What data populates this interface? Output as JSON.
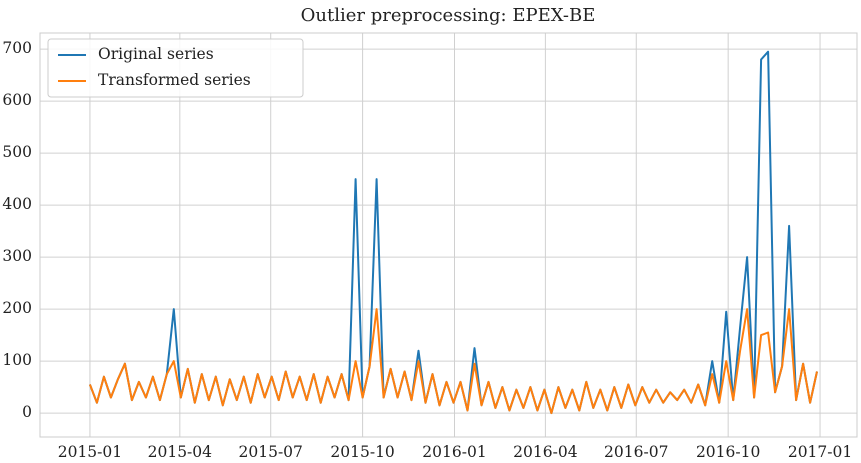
{
  "chart_data": {
    "type": "line",
    "title": "Outlier preprocessing: EPEX-BE",
    "x": [
      "2015-01-01",
      "2015-01-08",
      "2015-01-15",
      "2015-01-22",
      "2015-01-29",
      "2015-02-05",
      "2015-02-12",
      "2015-02-19",
      "2015-02-26",
      "2015-03-05",
      "2015-03-12",
      "2015-03-19",
      "2015-03-26",
      "2015-04-02",
      "2015-04-09",
      "2015-04-16",
      "2015-04-23",
      "2015-04-30",
      "2015-05-07",
      "2015-05-14",
      "2015-05-21",
      "2015-05-28",
      "2015-06-04",
      "2015-06-11",
      "2015-06-18",
      "2015-06-25",
      "2015-07-02",
      "2015-07-09",
      "2015-07-16",
      "2015-07-23",
      "2015-07-30",
      "2015-08-06",
      "2015-08-13",
      "2015-08-20",
      "2015-08-27",
      "2015-09-03",
      "2015-09-10",
      "2015-09-17",
      "2015-09-24",
      "2015-10-01",
      "2015-10-08",
      "2015-10-15",
      "2015-10-22",
      "2015-10-29",
      "2015-11-05",
      "2015-11-12",
      "2015-11-19",
      "2015-11-26",
      "2015-12-03",
      "2015-12-10",
      "2015-12-17",
      "2015-12-24",
      "2015-12-31",
      "2016-01-07",
      "2016-01-14",
      "2016-01-21",
      "2016-01-28",
      "2016-02-04",
      "2016-02-11",
      "2016-02-18",
      "2016-02-25",
      "2016-03-03",
      "2016-03-10",
      "2016-03-17",
      "2016-03-24",
      "2016-03-31",
      "2016-04-07",
      "2016-04-14",
      "2016-04-21",
      "2016-04-28",
      "2016-05-05",
      "2016-05-12",
      "2016-05-19",
      "2016-05-26",
      "2016-06-02",
      "2016-06-09",
      "2016-06-16",
      "2016-06-23",
      "2016-06-30",
      "2016-07-07",
      "2016-07-14",
      "2016-07-21",
      "2016-07-28",
      "2016-08-04",
      "2016-08-11",
      "2016-08-18",
      "2016-08-25",
      "2016-09-01",
      "2016-09-08",
      "2016-09-15",
      "2016-09-22",
      "2016-09-29",
      "2016-10-06",
      "2016-10-13",
      "2016-10-20",
      "2016-10-27",
      "2016-11-03",
      "2016-11-10",
      "2016-11-17",
      "2016-11-24",
      "2016-12-01",
      "2016-12-08",
      "2016-12-15",
      "2016-12-22",
      "2016-12-29"
    ],
    "series": [
      {
        "name": "Original series",
        "color": "#1f77b4",
        "values": [
          55,
          20,
          70,
          30,
          65,
          95,
          25,
          60,
          30,
          70,
          25,
          75,
          200,
          30,
          85,
          20,
          75,
          25,
          70,
          15,
          65,
          25,
          70,
          20,
          75,
          30,
          70,
          25,
          80,
          30,
          70,
          25,
          75,
          20,
          70,
          30,
          75,
          25,
          450,
          30,
          90,
          450,
          30,
          85,
          30,
          80,
          25,
          120,
          20,
          75,
          15,
          60,
          20,
          60,
          5,
          125,
          15,
          60,
          10,
          50,
          5,
          45,
          10,
          50,
          5,
          45,
          0,
          50,
          10,
          45,
          5,
          60,
          10,
          45,
          5,
          50,
          10,
          55,
          15,
          50,
          20,
          45,
          20,
          40,
          25,
          45,
          20,
          55,
          15,
          100,
          20,
          195,
          25,
          165,
          300,
          30,
          680,
          695,
          40,
          90,
          360,
          25,
          95,
          20,
          80
        ]
      },
      {
        "name": "Transformed series",
        "color": "#ff7f0e",
        "values": [
          55,
          20,
          70,
          30,
          65,
          95,
          25,
          60,
          30,
          70,
          25,
          75,
          100,
          30,
          85,
          20,
          75,
          25,
          70,
          15,
          65,
          25,
          70,
          20,
          75,
          30,
          70,
          25,
          80,
          30,
          70,
          25,
          75,
          20,
          70,
          30,
          75,
          25,
          100,
          30,
          90,
          200,
          30,
          85,
          30,
          80,
          25,
          100,
          20,
          75,
          15,
          60,
          20,
          60,
          5,
          95,
          15,
          60,
          10,
          50,
          5,
          45,
          10,
          50,
          5,
          45,
          0,
          50,
          10,
          45,
          5,
          60,
          10,
          45,
          5,
          50,
          10,
          55,
          15,
          50,
          20,
          45,
          20,
          40,
          25,
          45,
          20,
          55,
          15,
          75,
          20,
          100,
          25,
          120,
          200,
          30,
          150,
          155,
          40,
          90,
          200,
          25,
          95,
          20,
          80
        ]
      }
    ],
    "xlim": [
      "2014-11-12",
      "2017-02-07"
    ],
    "xticks": [
      {
        "value": "2015-01-01",
        "label": "2015-01"
      },
      {
        "value": "2015-04-01",
        "label": "2015-04"
      },
      {
        "value": "2015-07-01",
        "label": "2015-07"
      },
      {
        "value": "2015-10-01",
        "label": "2015-10"
      },
      {
        "value": "2016-01-01",
        "label": "2016-01"
      },
      {
        "value": "2016-04-01",
        "label": "2016-04"
      },
      {
        "value": "2016-07-01",
        "label": "2016-07"
      },
      {
        "value": "2016-10-01",
        "label": "2016-10"
      },
      {
        "value": "2017-01-01",
        "label": "2017-01"
      }
    ],
    "ylim": [
      -46,
      731
    ],
    "yticks": [
      0,
      100,
      200,
      300,
      400,
      500,
      600,
      700
    ],
    "grid": true,
    "legend": "upper left"
  }
}
